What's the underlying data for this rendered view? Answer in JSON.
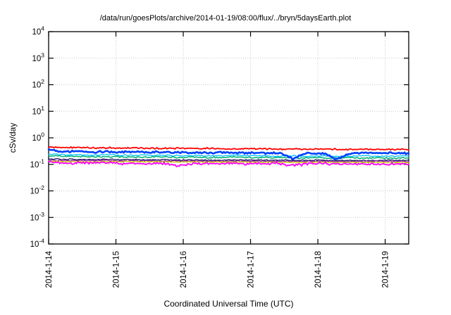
{
  "chart_data": {
    "type": "line",
    "title": "/data/run/goesPlots/archive/2014-01-19/08:00/flux/../bryn/5daysEarth.plot",
    "xlabel": "Coordinated Universal Time (UTC)",
    "ylabel": "cSv/day",
    "y_scale": "log10",
    "ylim_exponents": [
      -4,
      4
    ],
    "y_tick_base": "10",
    "y_tick_exponents": [
      4,
      3,
      2,
      1,
      0,
      -1,
      -2,
      -3,
      -4
    ],
    "x_tick_labels": [
      "2014-1-14",
      "2014-1-15",
      "2014-1-16",
      "2014-1-17",
      "2014-1-18",
      "2014-1-19"
    ],
    "x_span_days": 5.35,
    "grid": "dotted",
    "grid_color": "#c9c9c9",
    "frame_color": "#000000",
    "legend": "none",
    "series": [
      {
        "name": "cyan",
        "color": "#00c0ff",
        "width": 1.3,
        "jitter": 0.035,
        "values": [
          0.24,
          0.23,
          0.23,
          0.22,
          0.23,
          0.22,
          0.22,
          0.22,
          0.22,
          0.21,
          0.22,
          0.21,
          0.21,
          0.22,
          0.21,
          0.21,
          0.2,
          0.21,
          0.2,
          0.21,
          0.2,
          0.2,
          0.21,
          0.2,
          0.2,
          0.21
        ]
      },
      {
        "name": "green",
        "color": "#00b070",
        "width": 1.5,
        "jitter": 0.04,
        "values": [
          0.21,
          0.2,
          0.2,
          0.19,
          0.2,
          0.19,
          0.19,
          0.19,
          0.19,
          0.18,
          0.19,
          0.18,
          0.18,
          0.19,
          0.18,
          0.18,
          0.18,
          0.17,
          0.18,
          0.18,
          0.17,
          0.18,
          0.17,
          0.18,
          0.17,
          0.18
        ]
      },
      {
        "name": "navy",
        "color": "#141460",
        "width": 1.3,
        "jitter": 0.03,
        "values": [
          0.16,
          0.155,
          0.155,
          0.15,
          0.155,
          0.15,
          0.15,
          0.148,
          0.15,
          0.145,
          0.148,
          0.145,
          0.145,
          0.148,
          0.145,
          0.143,
          0.145,
          0.14,
          0.143,
          0.145,
          0.14,
          0.142,
          0.14,
          0.142,
          0.14,
          0.142
        ]
      },
      {
        "name": "purple",
        "color": "#9020a0",
        "width": 1.3,
        "jitter": 0.03,
        "values": [
          0.145,
          0.14,
          0.14,
          0.138,
          0.14,
          0.136,
          0.138,
          0.135,
          0.136,
          0.133,
          0.135,
          0.132,
          0.133,
          0.135,
          0.132,
          0.13,
          0.132,
          0.128,
          0.13,
          0.132,
          0.128,
          0.13,
          0.128,
          0.13,
          0.128,
          0.13
        ]
      },
      {
        "name": "olive",
        "color": "#cccc00",
        "width": 1.3,
        "jitter": 0.03,
        "values": [
          0.132,
          0.128,
          0.128,
          0.125,
          0.127,
          0.124,
          0.126,
          0.123,
          0.124,
          0.122,
          0.123,
          0.12,
          0.122,
          0.123,
          0.12,
          0.119,
          0.12,
          0.117,
          0.119,
          0.12,
          0.117,
          0.118,
          0.117,
          0.118,
          0.116,
          0.118
        ]
      },
      {
        "name": "magenta",
        "color": "#ff00ff",
        "width": 1.8,
        "jitter": 0.07,
        "values": [
          0.12,
          0.113,
          0.115,
          0.11,
          0.112,
          0.108,
          0.112,
          0.108,
          0.11,
          0.085,
          0.108,
          0.11,
          0.106,
          0.108,
          0.106,
          0.105,
          0.106,
          0.09,
          0.105,
          0.107,
          0.104,
          0.105,
          0.103,
          0.105,
          0.103,
          0.105
        ]
      },
      {
        "name": "blue",
        "color": "#0040ff",
        "width": 2.6,
        "jitter": 0.05,
        "values": [
          0.36,
          0.3,
          0.31,
          0.29,
          0.3,
          0.29,
          0.3,
          0.28,
          0.29,
          0.28,
          0.28,
          0.27,
          0.28,
          0.27,
          0.27,
          0.26,
          0.27,
          0.16,
          0.27,
          0.26,
          0.15,
          0.26,
          0.27,
          0.26,
          0.27,
          0.26
        ]
      },
      {
        "name": "red",
        "color": "#ff0000",
        "width": 1.8,
        "jitter": 0.04,
        "values": [
          0.45,
          0.43,
          0.44,
          0.42,
          0.42,
          0.41,
          0.42,
          0.4,
          0.41,
          0.4,
          0.39,
          0.4,
          0.39,
          0.38,
          0.39,
          0.38,
          0.37,
          0.38,
          0.37,
          0.38,
          0.37,
          0.36,
          0.37,
          0.36,
          0.37,
          0.36
        ]
      }
    ]
  }
}
